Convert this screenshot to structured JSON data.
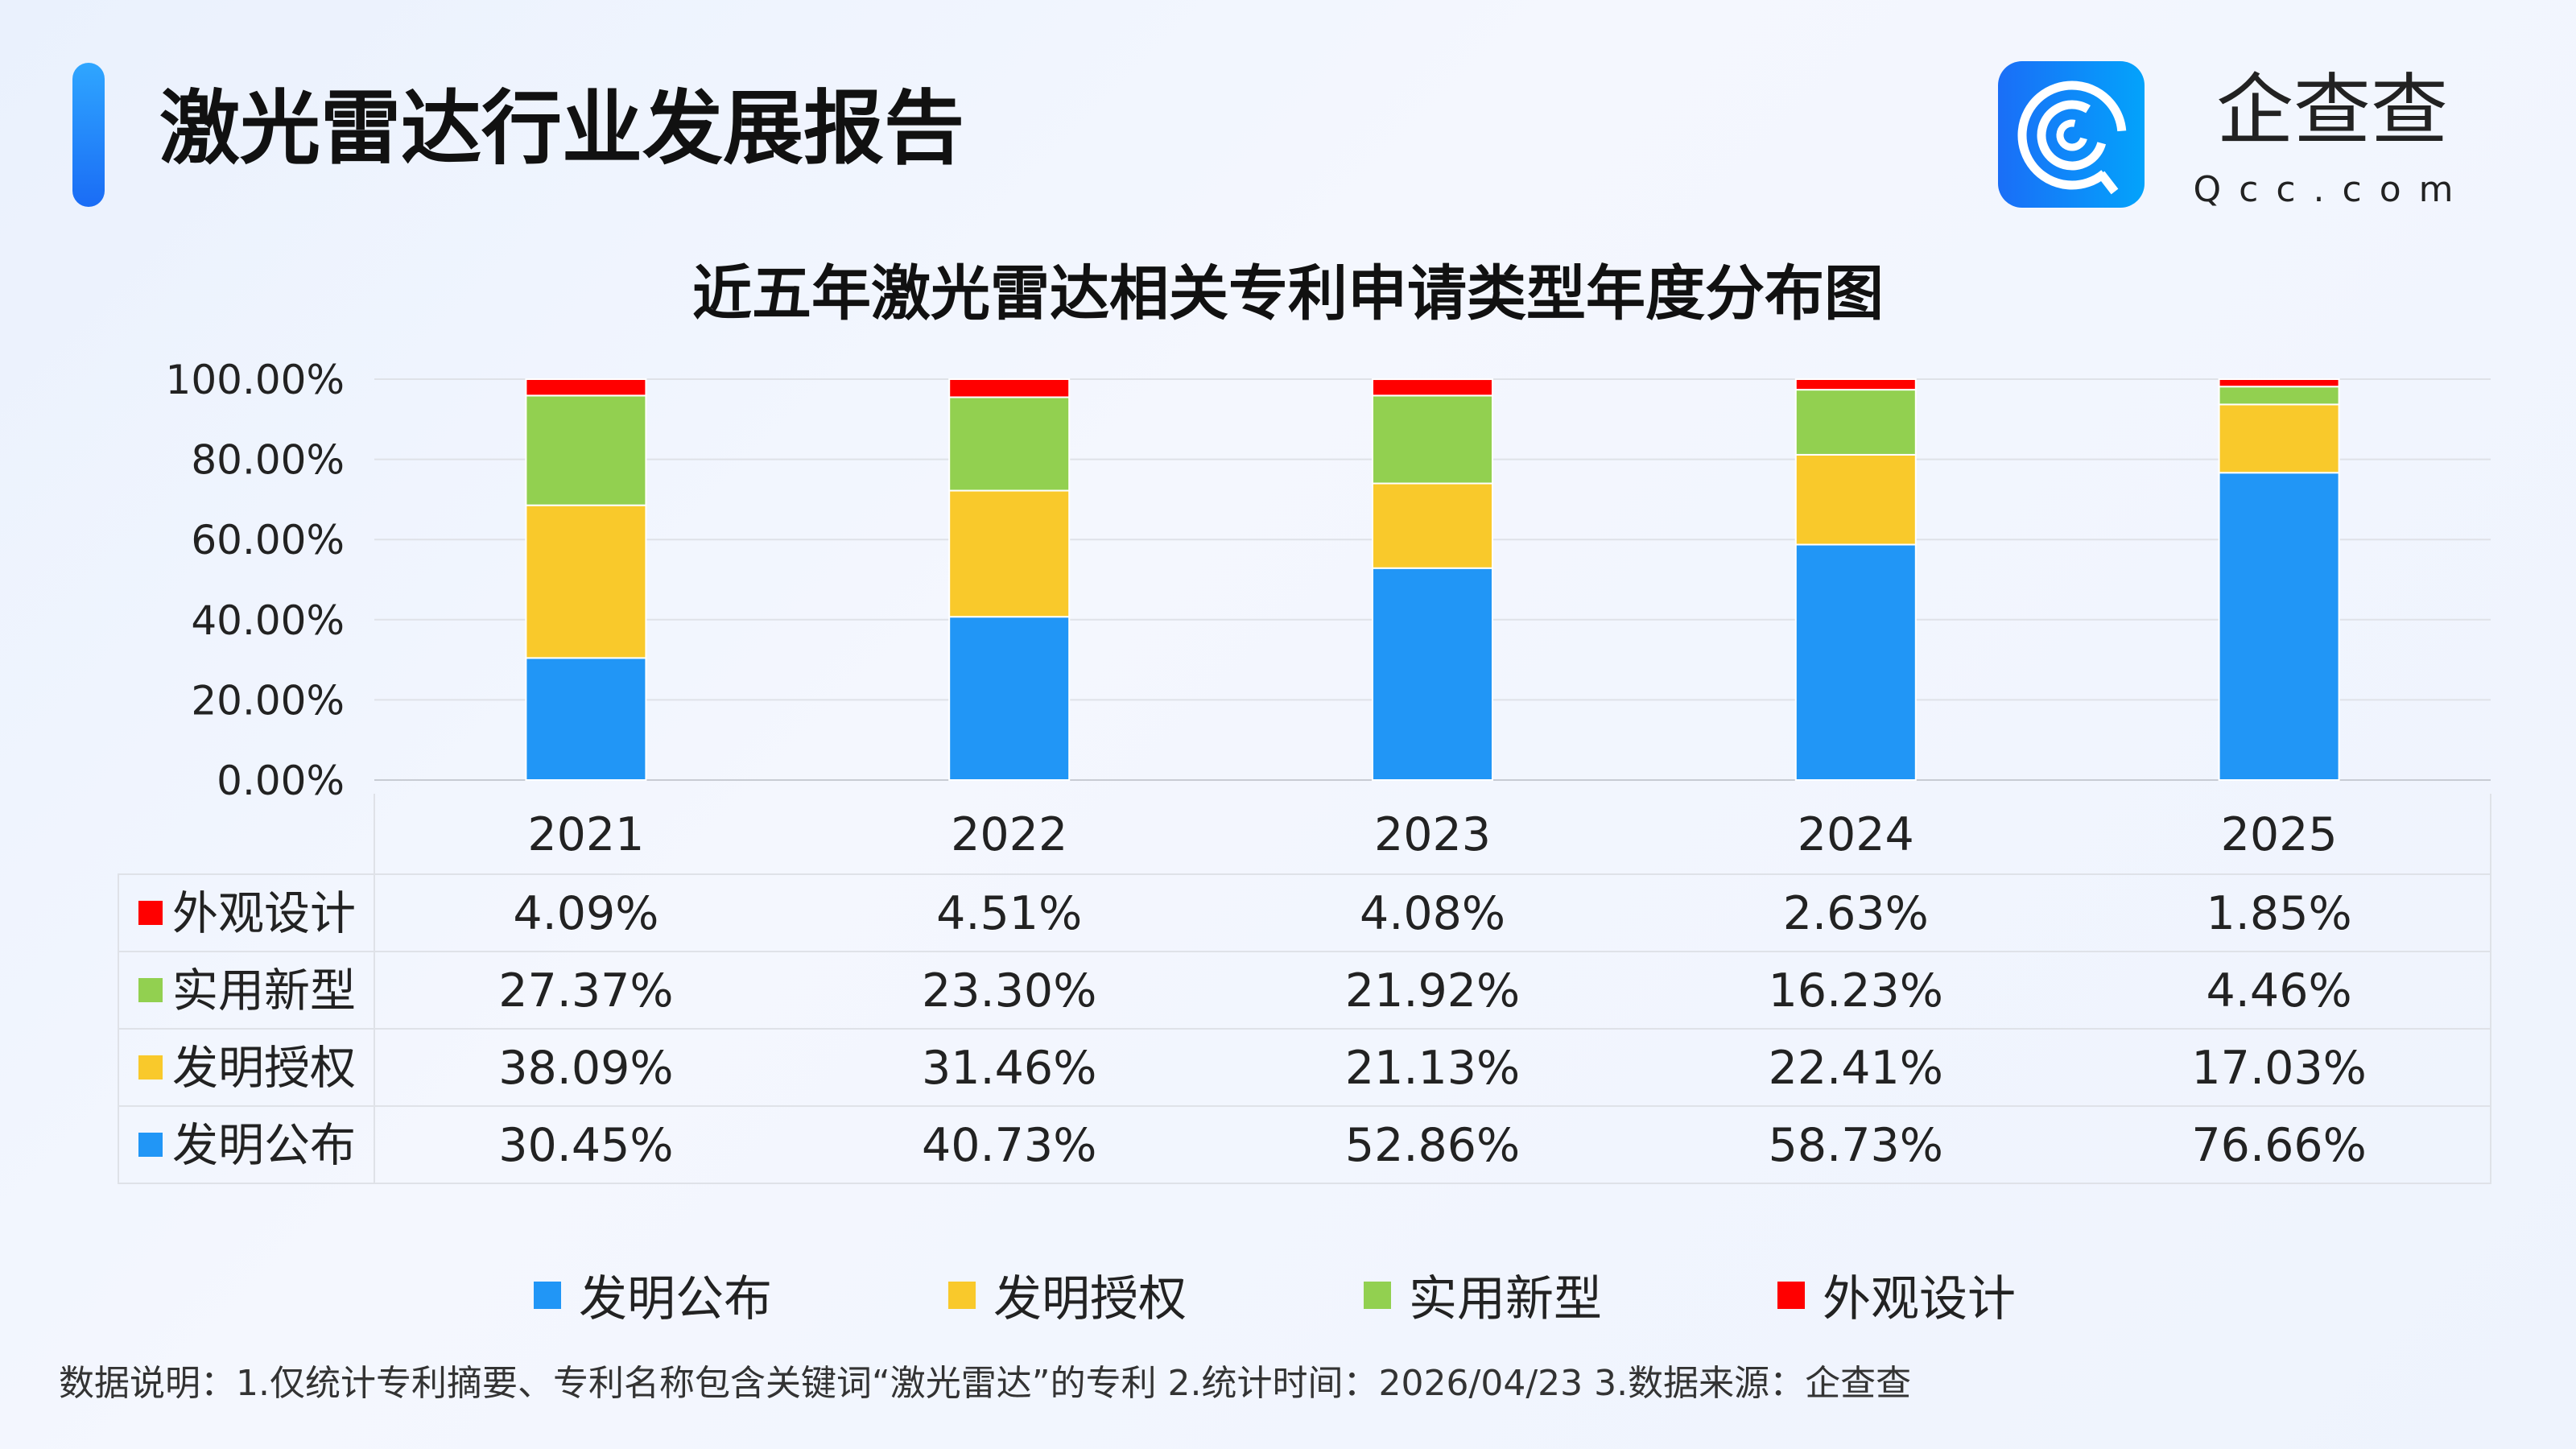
{
  "header": {
    "title": "激光雷达行业发展报告",
    "logo_text": "企查查",
    "logo_sub": "Qcc.com"
  },
  "chart_data": {
    "type": "bar",
    "stacked": true,
    "title": "近五年激光雷达相关专利申请类型年度分布图",
    "categories": [
      "2021",
      "2022",
      "2023",
      "2024",
      "2025"
    ],
    "ylim": [
      0,
      100
    ],
    "yticks": [
      "0.00%",
      "20.00%",
      "40.00%",
      "60.00%",
      "80.00%",
      "100.00%"
    ],
    "grid": true,
    "legend_position": "bottom",
    "series": [
      {
        "name": "发明公布",
        "color": "#2196F6",
        "values": [
          30.45,
          40.73,
          52.86,
          58.73,
          76.66
        ],
        "labels": [
          "30.45%",
          "40.73%",
          "52.86%",
          "58.73%",
          "76.66%"
        ]
      },
      {
        "name": "发明授权",
        "color": "#F9C92B",
        "values": [
          38.09,
          31.46,
          21.13,
          22.41,
          17.03
        ],
        "labels": [
          "38.09%",
          "31.46%",
          "21.13%",
          "22.41%",
          "17.03%"
        ]
      },
      {
        "name": "实用新型",
        "color": "#92D050",
        "values": [
          27.37,
          23.3,
          21.92,
          16.23,
          4.46
        ],
        "labels": [
          "27.37%",
          "23.30%",
          "21.92%",
          "16.23%",
          "4.46%"
        ]
      },
      {
        "name": "外观设计",
        "color": "#FF0000",
        "values": [
          4.09,
          4.51,
          4.08,
          2.63,
          1.85
        ],
        "labels": [
          "4.09%",
          "4.51%",
          "4.08%",
          "2.63%",
          "1.85%"
        ]
      }
    ]
  },
  "footer": {
    "note": "数据说明：1.仅统计专利摘要、专利名称包含关键词“激光雷达”的专利   2.统计时间：2026/04/23   3.数据来源：企查查"
  }
}
